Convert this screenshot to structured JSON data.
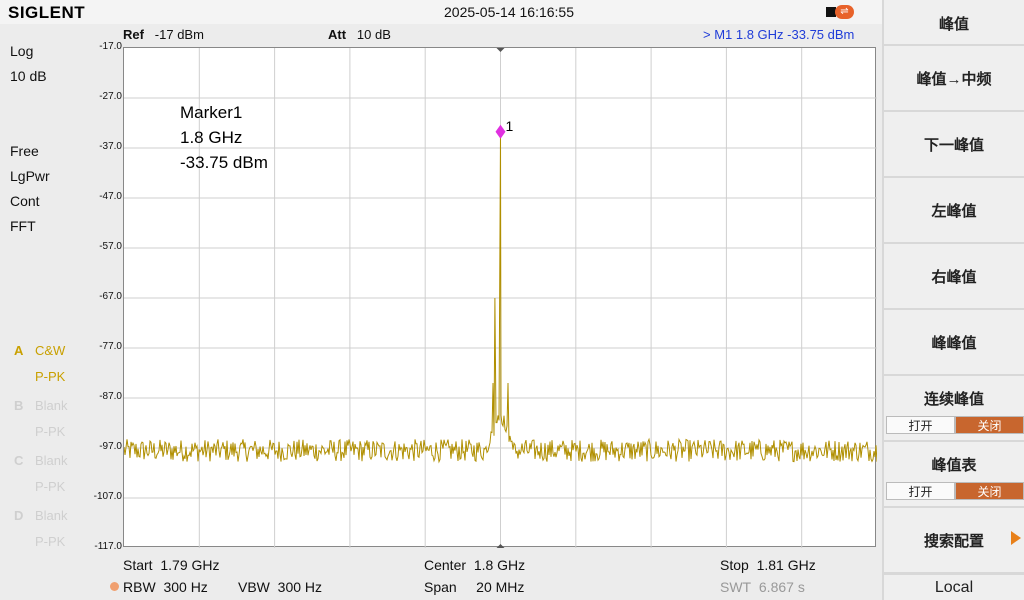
{
  "header": {
    "brand": "SIGLENT",
    "datetime": "2025-05-14 16:16:55"
  },
  "status": {
    "scale": "Log",
    "div": "10 dB",
    "trig": "Free",
    "avg": "LgPwr",
    "sweep": "Cont",
    "mode": "FFT"
  },
  "traces": [
    {
      "letter": "A",
      "mode1": "C&W",
      "mode2": "P-PK",
      "active": true
    },
    {
      "letter": "B",
      "mode1": "Blank",
      "mode2": "P-PK",
      "active": false
    },
    {
      "letter": "C",
      "mode1": "Blank",
      "mode2": "P-PK",
      "active": false
    },
    {
      "letter": "D",
      "mode1": "Blank",
      "mode2": "P-PK",
      "active": false
    }
  ],
  "ref": {
    "label": "Ref",
    "value": "-17 dBm"
  },
  "att": {
    "label": "Att",
    "value": "10 dB"
  },
  "marker_readout": ">  M1     1.8 GHz    -33.75 dBm",
  "marker_info": {
    "name": "Marker1",
    "freq": "1.8 GHz",
    "level": "-33.75 dBm",
    "tag": "1"
  },
  "yticks": [
    "-17.0",
    "-27.0",
    "-37.0",
    "-47.0",
    "-57.0",
    "-67.0",
    "-77.0",
    "-87.0",
    "-97.0",
    "-107.0",
    "-117.0"
  ],
  "bottom": {
    "start_label": "Start",
    "start_value": "1.79 GHz",
    "center_label": "Center",
    "center_value": "1.8 GHz",
    "stop_label": "Stop",
    "stop_value": "1.81 GHz",
    "rbw_label": "RBW",
    "rbw_value": "300 Hz",
    "vbw_label": "VBW",
    "vbw_value": "300 Hz",
    "span_label": "Span",
    "span_value": "20 MHz",
    "swt_label": "SWT",
    "swt_value": "6.867 s"
  },
  "softkeys": {
    "title": "峰值",
    "k1": "峰值→中频",
    "k2": "下一峰值",
    "k3": "左峰值",
    "k4": "右峰值",
    "k5": "峰峰值",
    "k6": "连续峰值",
    "k6_on": "打开",
    "k6_off": "关闭",
    "k7": "峰值表",
    "k7_on": "打开",
    "k7_off": "关闭",
    "k8": "搜索配置",
    "local": "Local"
  },
  "chart_data": {
    "type": "line",
    "xlim": [
      1.79,
      1.81
    ],
    "ylim": [
      -117.0,
      -17.0
    ],
    "x_unit": "GHz",
    "y_unit": "dBm",
    "grid": true,
    "trace_color": "#b08f00",
    "marker_color": "#e030e0",
    "noise_floor": -97.5,
    "peaks": [
      {
        "x": 1.8,
        "y": -33.75
      },
      {
        "x": 1.79985,
        "y": -67
      },
      {
        "x": 1.7998,
        "y": -84
      },
      {
        "x": 1.8002,
        "y": -84
      }
    ],
    "marker": {
      "x": 1.8,
      "y": -33.75
    }
  }
}
